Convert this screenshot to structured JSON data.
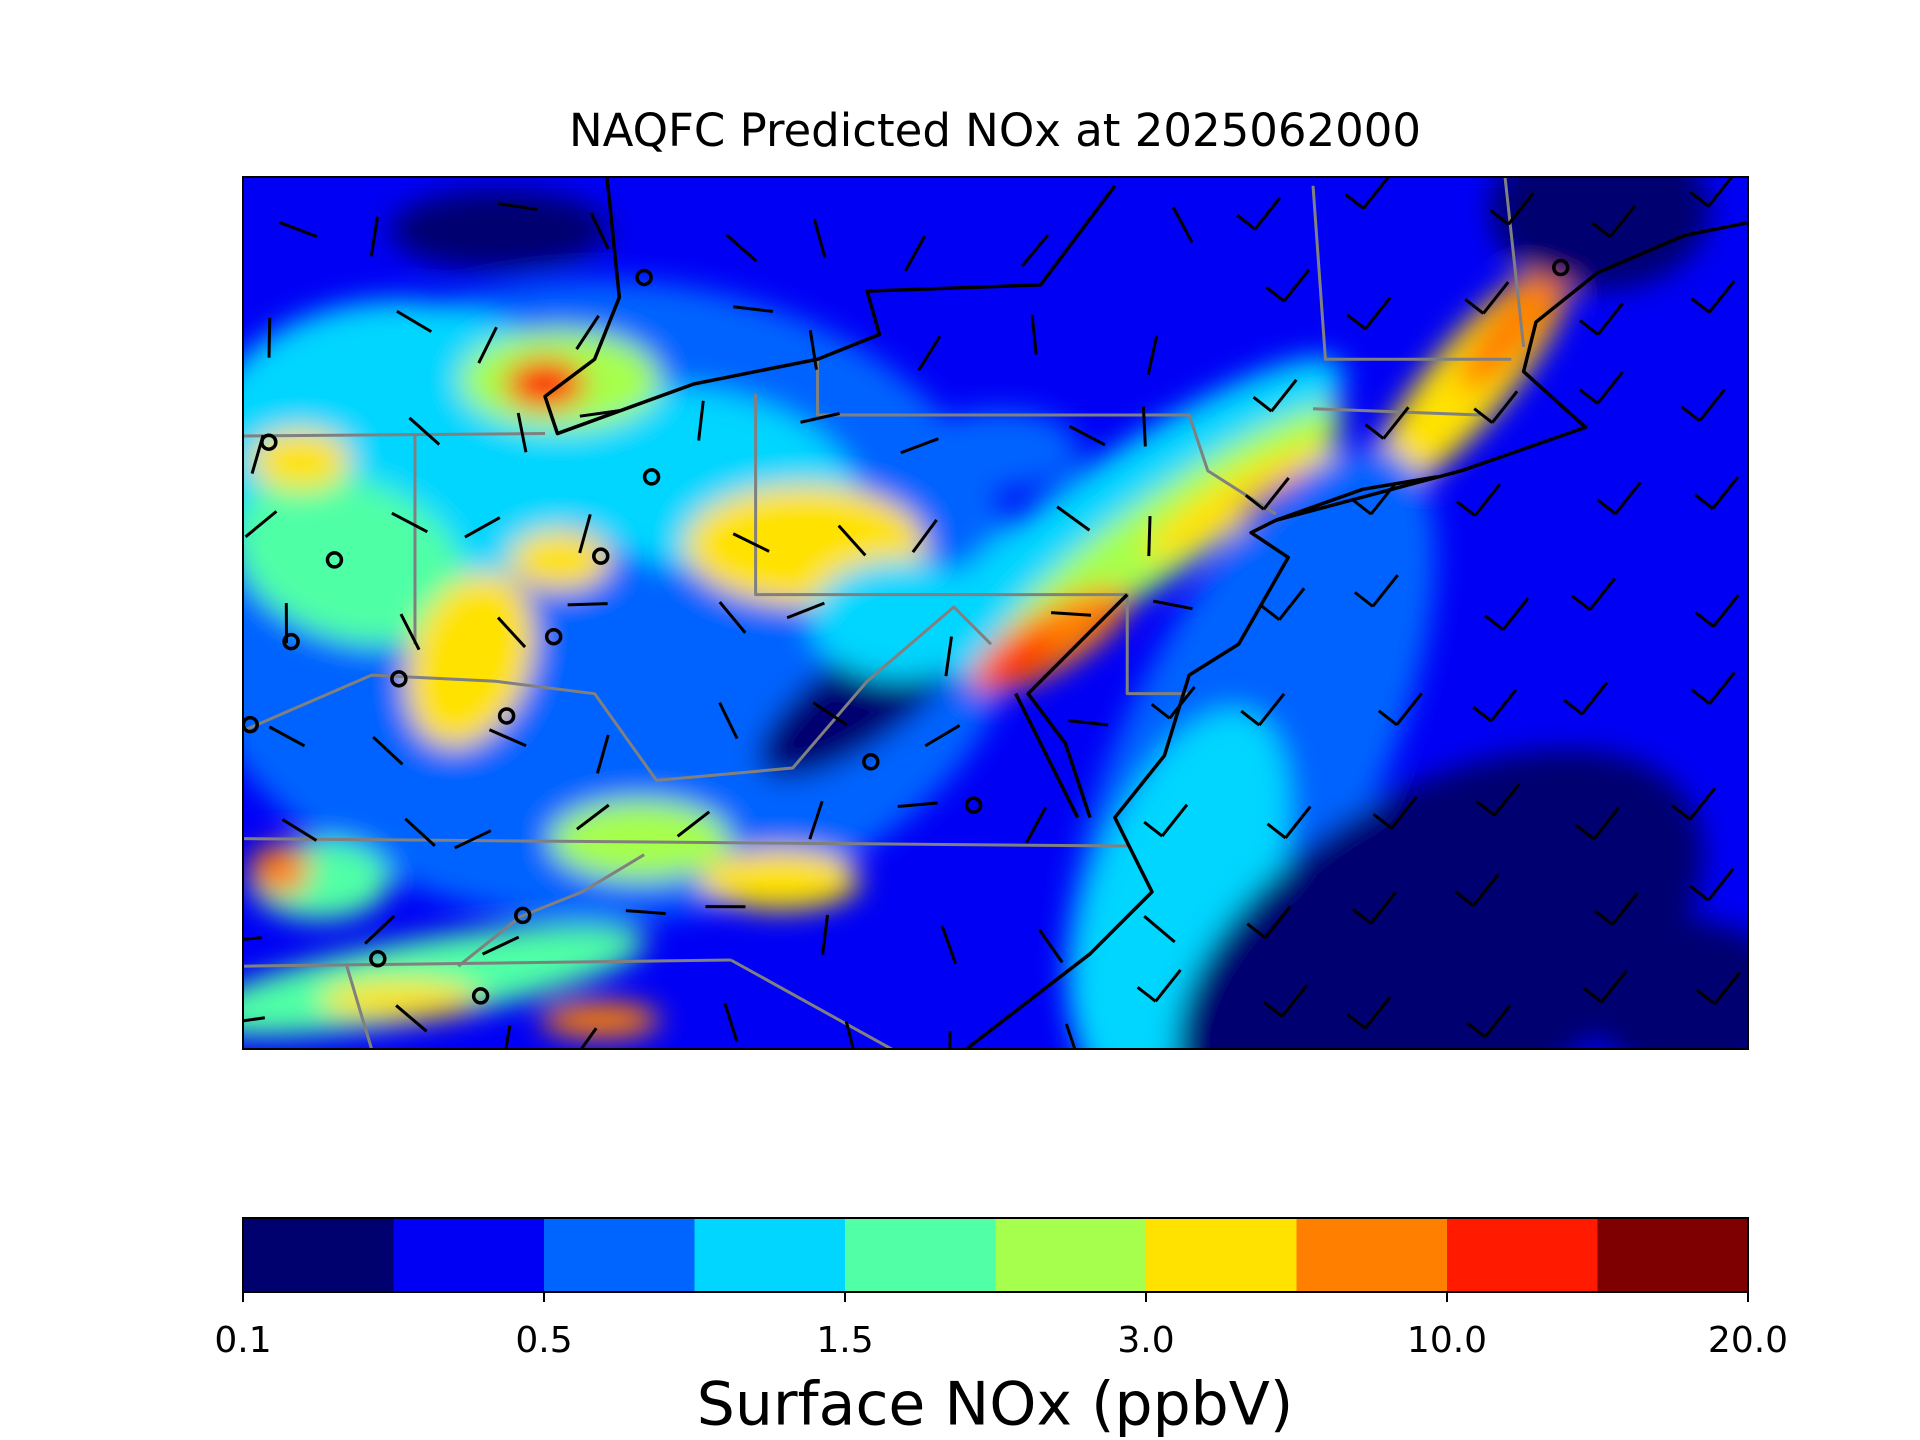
{
  "chart_data": {
    "type": "map",
    "title": "NAQFC Predicted NOx at 2025062000",
    "colorbar": {
      "label": "Surface NOx (ppbV)",
      "colors": [
        "#00006f",
        "#0000f5",
        "#0064ff",
        "#00d6ff",
        "#50ffa6",
        "#a6ff4c",
        "#ffe200",
        "#ff7f00",
        "#ff1a00",
        "#7f0000"
      ],
      "ticks": [
        0.1,
        0.5,
        1.5,
        {
          "value": 3,
          "label": "3.0"
        },
        {
          "value": 10,
          "label": "10.0"
        },
        {
          "value": 20,
          "label": "20.0"
        }
      ]
    }
  }
}
